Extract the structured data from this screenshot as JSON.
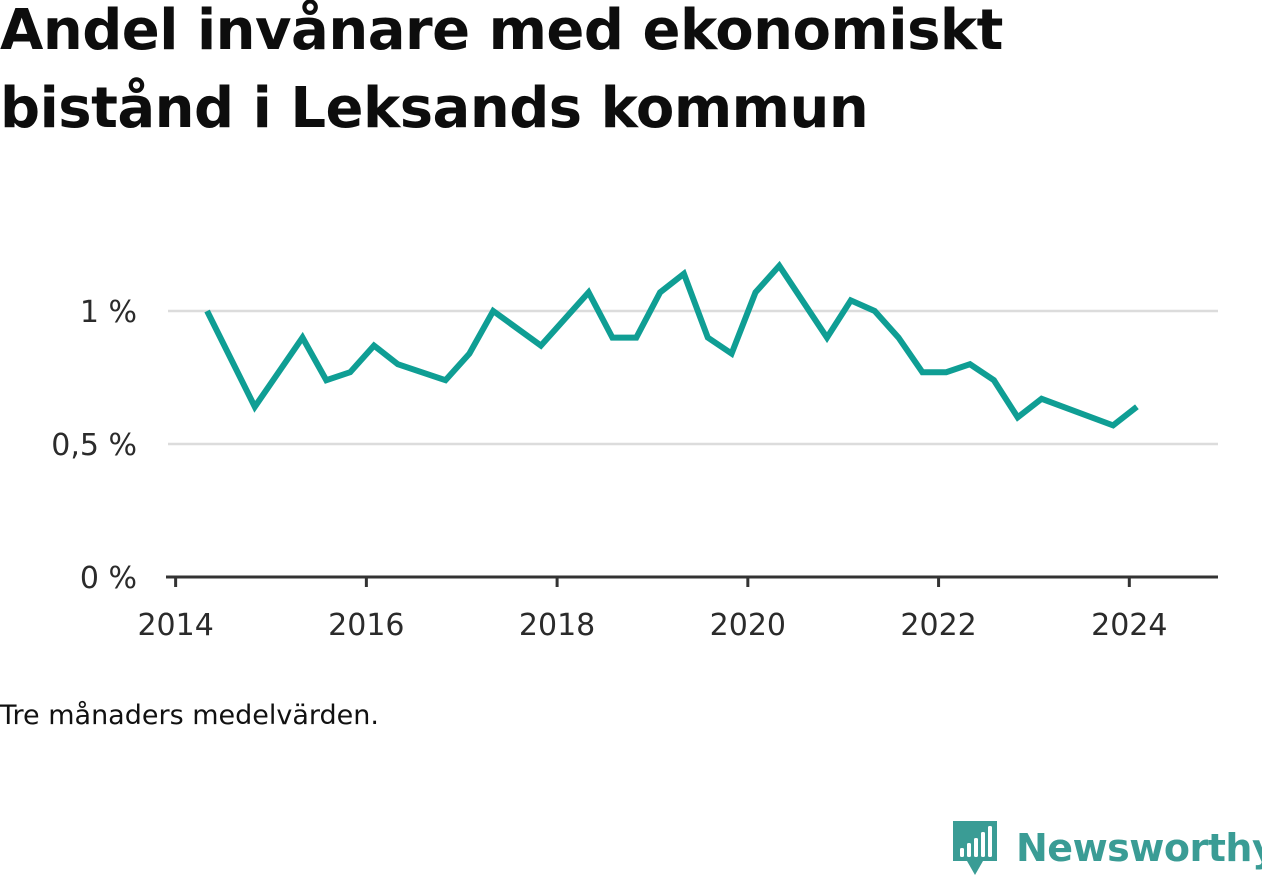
{
  "title": "Andel invånare med ekonomiskt bistånd i Leksands kommun",
  "note": "Tre månaders medelvärden.",
  "brand": {
    "name": "Newsworthy",
    "logo_icon": "newsworthy-logo-icon",
    "color": "#3a9c95"
  },
  "colors": {
    "line": "#0f9e94",
    "grid": "#dcdcdc",
    "axis": "#333333"
  },
  "chart_data": {
    "type": "line",
    "title": "Andel invånare med ekonomiskt bistånd i Leksands kommun",
    "xlabel": "",
    "ylabel": "",
    "xlim": [
      2013.92,
      2024.93
    ],
    "ylim": [
      0,
      1.0
    ],
    "grid": true,
    "x_ticks": [
      2014,
      2016,
      2018,
      2020,
      2022,
      2024
    ],
    "x_tick_labels": [
      "2014",
      "2016",
      "2018",
      "2020",
      "2022",
      "2024"
    ],
    "y_ticks": [
      0,
      0.5,
      1.0
    ],
    "y_tick_labels": [
      "0 %",
      "0,5 %",
      "1 %"
    ],
    "series": [
      {
        "color": "#0f9e94",
        "points": [
          [
            2014.33,
            1.0
          ],
          [
            2014.83,
            0.64
          ],
          [
            2015.33,
            0.9
          ],
          [
            2015.58,
            0.74
          ],
          [
            2015.83,
            0.77
          ],
          [
            2016.08,
            0.87
          ],
          [
            2016.33,
            0.8
          ],
          [
            2016.83,
            0.74
          ],
          [
            2017.08,
            0.84
          ],
          [
            2017.33,
            1.0
          ],
          [
            2017.83,
            0.87
          ],
          [
            2018.33,
            1.07
          ],
          [
            2018.58,
            0.9
          ],
          [
            2018.83,
            0.9
          ],
          [
            2019.08,
            1.07
          ],
          [
            2019.33,
            1.14
          ],
          [
            2019.58,
            0.9
          ],
          [
            2019.83,
            0.84
          ],
          [
            2020.08,
            1.07
          ],
          [
            2020.33,
            1.17
          ],
          [
            2020.83,
            0.9
          ],
          [
            2021.08,
            1.04
          ],
          [
            2021.33,
            1.0
          ],
          [
            2021.58,
            0.9
          ],
          [
            2021.83,
            0.77
          ],
          [
            2022.08,
            0.77
          ],
          [
            2022.33,
            0.8
          ],
          [
            2022.58,
            0.74
          ],
          [
            2022.83,
            0.6
          ],
          [
            2023.08,
            0.67
          ],
          [
            2023.83,
            0.57
          ],
          [
            2024.08,
            0.64
          ]
        ]
      }
    ]
  }
}
